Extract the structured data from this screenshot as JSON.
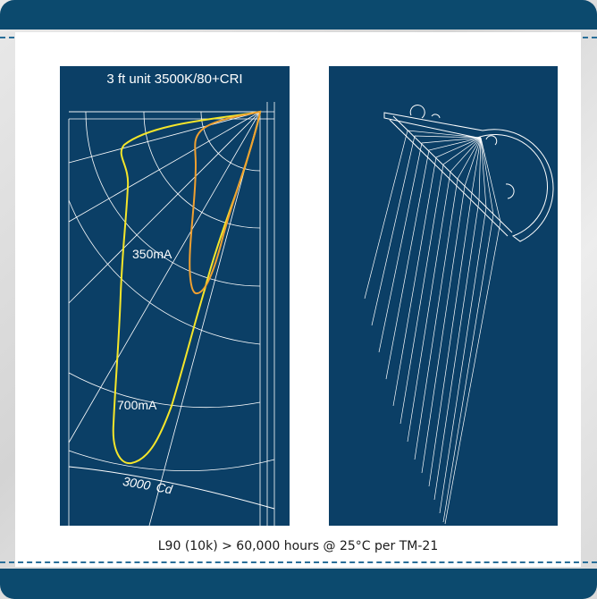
{
  "left_panel": {
    "title": "3 ft unit 3500K/80+CRI",
    "label_350": "350mA",
    "label_700": "700mA",
    "scale_value": "3000",
    "scale_unit": "Cd"
  },
  "caption": "L90 (10k) > 60,000 hours @ 25°C per TM-21",
  "colors": {
    "header": "#0c4a6e",
    "panel_bg": "#0b3f66",
    "curve_350": "#f0a030",
    "curve_700": "#f5e62a",
    "grid": "#ffffff"
  }
}
